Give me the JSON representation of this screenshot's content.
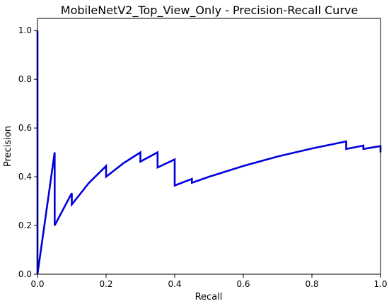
{
  "chart_data": {
    "type": "line",
    "title": "MobileNetV2_Top_View_Only - Precision-Recall Curve",
    "xlabel": "Recall",
    "ylabel": "Precision",
    "xlim": [
      0,
      1
    ],
    "ylim": [
      0,
      1.05
    ],
    "x_ticks": [
      "0.0",
      "0.2",
      "0.4",
      "0.6",
      "0.8",
      "1.0"
    ],
    "y_ticks": [
      "0.0",
      "0.2",
      "0.4",
      "0.6",
      "0.8",
      "1.0"
    ],
    "grid": false,
    "legend": "none",
    "series": [
      {
        "color": "#0000dd",
        "x": [
          0,
          0.0,
          0.05,
          0.05,
          0.1,
          0.1,
          0.15,
          0.2,
          0.2,
          0.25,
          0.3,
          0.3,
          0.35,
          0.35,
          0.4,
          0.4,
          0.45,
          0.45,
          0.5,
          0.6,
          0.7,
          0.8,
          0.9,
          0.9,
          0.95,
          0.95,
          1.0,
          1.0
        ],
        "y": [
          1.0,
          0.0,
          0.5,
          0.2,
          0.333,
          0.286,
          0.375,
          0.444,
          0.4,
          0.455,
          0.5,
          0.462,
          0.5,
          0.438,
          0.471,
          0.364,
          0.391,
          0.375,
          0.4,
          0.444,
          0.483,
          0.516,
          0.545,
          0.514,
          0.528,
          0.514,
          0.526,
          0.5
        ]
      }
    ]
  }
}
